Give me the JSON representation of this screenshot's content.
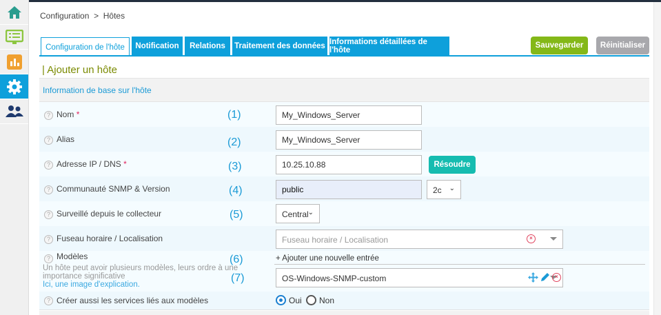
{
  "sidebar": {
    "items": [
      {
        "icon": "home-icon",
        "color": "#2a9d8f"
      },
      {
        "icon": "monitor-list-icon",
        "color": "#8cc63f"
      },
      {
        "icon": "bar-chart-icon",
        "color": "#f0a030"
      },
      {
        "icon": "gear-icon",
        "active": true
      },
      {
        "icon": "users-icon",
        "color": "#1f3a6e"
      }
    ]
  },
  "breadcrumb": {
    "root": "Configuration",
    "sep": ">",
    "current": "Hôtes"
  },
  "tabs": [
    {
      "label": "Configuration de l'hôte",
      "active": true
    },
    {
      "label": "Notification"
    },
    {
      "label": "Relations"
    },
    {
      "label": "Traitement des données"
    },
    {
      "label": "Informations détaillées de l'hôte"
    }
  ],
  "actions": {
    "save": "Sauvegarder",
    "reset": "Réinitialiser"
  },
  "page_title": "| Ajouter un hôte",
  "section_title": "Information de base sur l'hôte",
  "help": "?",
  "required": "*",
  "form": {
    "name": {
      "label": "Nom",
      "num": "(1)",
      "value": "My_Windows_Server"
    },
    "alias": {
      "label": "Alias",
      "num": "(2)",
      "value": "My_Windows_Server"
    },
    "ip": {
      "label": "Adresse IP / DNS",
      "num": "(3)",
      "value": "10.25.10.88",
      "resolve": "Résoudre"
    },
    "snmp": {
      "label": "Communauté SNMP & Version",
      "num": "(4)",
      "community": "public",
      "version": "2c"
    },
    "poller": {
      "label": "Surveillé depuis le collecteur",
      "num": "(5)",
      "value": "Central"
    },
    "timezone": {
      "label": "Fuseau horaire / Localisation",
      "placeholder": "Fuseau horaire / Localisation"
    },
    "templates": {
      "label": "Modèles",
      "num6": "(6)",
      "num7": "(7)",
      "hint": "Un hôte peut avoir plusieurs modèles, leurs ordre à une importance significative",
      "link": "Ici, une image d'explication.",
      "add": "+ Ajouter une nouvelle entrée",
      "value": "OS-Windows-SNMP-custom"
    },
    "create_services": {
      "label": "Créer aussi les services liés aux modèles",
      "yes": "Oui",
      "no": "Non",
      "selected": "Oui"
    }
  },
  "colors": {
    "accent": "#0ea0db",
    "save": "#84b818",
    "reset": "#a8a8ac",
    "resolve": "#16bcb0",
    "title": "#7a8a00"
  }
}
